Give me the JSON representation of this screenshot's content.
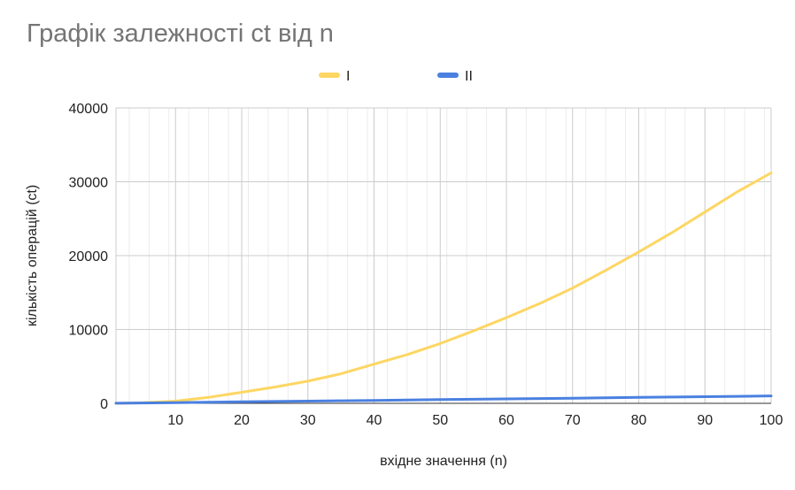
{
  "chart_data": {
    "type": "line",
    "title": "Графік залежності ct від n",
    "xlabel": "вхідне значення (n)",
    "ylabel": "кількість операцій (ct)",
    "xlim": [
      1,
      100
    ],
    "ylim": [
      0,
      40000
    ],
    "x_ticks": [
      "10",
      "20",
      "30",
      "40",
      "50",
      "60",
      "70",
      "80",
      "90",
      "100"
    ],
    "y_ticks": [
      "0",
      "10000",
      "20000",
      "30000",
      "40000"
    ],
    "grid": true,
    "legend_position": "top",
    "x": [
      1,
      5,
      10,
      15,
      20,
      25,
      30,
      35,
      40,
      45,
      50,
      55,
      60,
      65,
      70,
      75,
      80,
      85,
      90,
      95,
      100
    ],
    "series": [
      {
        "name": "I",
        "color": "#fdd663",
        "values": [
          3,
          75,
          300,
          800,
          1500,
          2200,
          3000,
          4000,
          5300,
          6600,
          8100,
          9800,
          11600,
          13500,
          15600,
          18000,
          20500,
          23100,
          25900,
          28700,
          31200
        ]
      },
      {
        "name": "II",
        "color": "#4a80e0",
        "values": [
          10,
          50,
          100,
          150,
          200,
          250,
          300,
          350,
          400,
          450,
          500,
          550,
          600,
          650,
          700,
          750,
          800,
          850,
          900,
          950,
          1000
        ]
      }
    ]
  }
}
